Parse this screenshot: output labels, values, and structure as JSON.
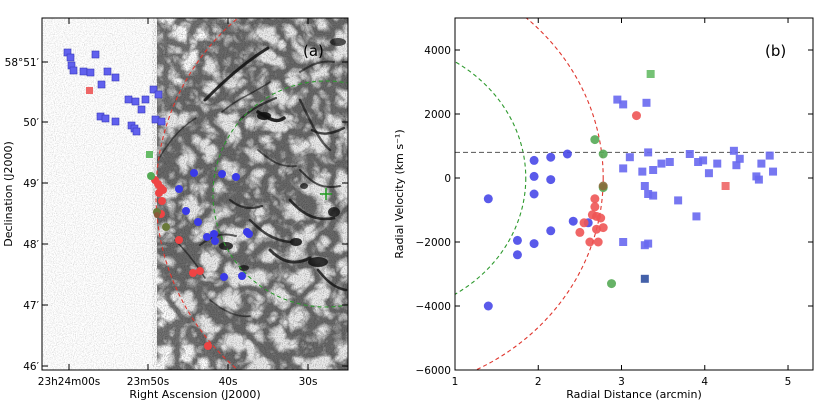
{
  "chart_data": [
    {
      "type": "image",
      "panel_label": "(a)",
      "xlabel": "Right Ascension (J2000)",
      "ylabel": "Declination (J2000)",
      "x_tick_labels": [
        "23h24m00s",
        "23m50s",
        "40s",
        "30s"
      ],
      "y_tick_labels": [
        "58°51′",
        "50′",
        "49′",
        "48′",
        "47′",
        "46′"
      ],
      "background": "grayscale narrowband image of supernova remnant (inverted)",
      "circles": [
        {
          "name": "outer-radius",
          "color": "#e0372f",
          "style": "dashed"
        },
        {
          "name": "inner-radius",
          "color": "#2e9a2e",
          "style": "dashed"
        }
      ],
      "center_marker": {
        "symbol": "+",
        "color": "#1e9a1e"
      }
    },
    {
      "type": "scatter",
      "panel_label": "(b)",
      "xlabel": "Radial Distance (arcmin)",
      "ylabel": "Radial Velocity (km s⁻¹)",
      "xlim": [
        1,
        5.3
      ],
      "ylim": [
        -6000,
        5000
      ],
      "xticks": [
        1,
        2,
        3,
        4,
        5
      ],
      "yticks": [
        -6000,
        -4000,
        -2000,
        0,
        2000,
        4000
      ],
      "x_tick_labels": [
        "1",
        "2",
        "3",
        "4",
        "5"
      ],
      "y_tick_labels": [
        "−6000",
        "−4000",
        "−2000",
        "0",
        "2000",
        "4000"
      ],
      "reference_line": {
        "y": 800,
        "color": "#555555",
        "style": "dashed"
      },
      "circles": [
        {
          "name": "inner-circle",
          "radius_x": 1.85,
          "color": "#2e9a2e",
          "style": "dashed"
        },
        {
          "name": "outer-circle",
          "radius_x": 2.78,
          "color": "#e0372f",
          "style": "dashed"
        }
      ],
      "series": [
        {
          "name": "blue-circles",
          "marker": "circle",
          "color": "#4848e8",
          "points": [
            [
              1.4,
              -650
            ],
            [
              1.4,
              -4000
            ],
            [
              1.75,
              -1950
            ],
            [
              1.75,
              -2400
            ],
            [
              1.95,
              550
            ],
            [
              1.95,
              50
            ],
            [
              1.95,
              -500
            ],
            [
              1.95,
              -2050
            ],
            [
              2.15,
              650
            ],
            [
              2.15,
              -50
            ],
            [
              2.15,
              -1650
            ],
            [
              2.35,
              750
            ],
            [
              2.42,
              -1350
            ],
            [
              2.6,
              -1400
            ]
          ]
        },
        {
          "name": "blue-squares",
          "marker": "square",
          "color": "#6868f0",
          "points": [
            [
              2.95,
              2450
            ],
            [
              3.02,
              2300
            ],
            [
              3.3,
              2350
            ],
            [
              3.02,
              300
            ],
            [
              3.1,
              650
            ],
            [
              3.25,
              200
            ],
            [
              3.28,
              -250
            ],
            [
              3.32,
              -500
            ],
            [
              3.32,
              800
            ],
            [
              3.38,
              -550
            ],
            [
              3.38,
              250
            ],
            [
              3.48,
              450
            ],
            [
              3.58,
              500
            ],
            [
              3.68,
              -700
            ],
            [
              3.82,
              750
            ],
            [
              3.9,
              -1200
            ],
            [
              3.92,
              500
            ],
            [
              3.98,
              550
            ],
            [
              4.05,
              150
            ],
            [
              4.15,
              450
            ],
            [
              4.35,
              850
            ],
            [
              4.38,
              400
            ],
            [
              4.42,
              600
            ],
            [
              4.62,
              50
            ],
            [
              4.65,
              -50
            ],
            [
              4.68,
              450
            ],
            [
              4.78,
              700
            ],
            [
              4.82,
              200
            ],
            [
              3.02,
              -2000
            ],
            [
              3.28,
              -2100
            ],
            [
              3.32,
              -2050
            ]
          ]
        },
        {
          "name": "navy-squares",
          "marker": "square",
          "color": "#3050a0",
          "points": [
            [
              3.28,
              -3150
            ]
          ]
        },
        {
          "name": "red-circles",
          "marker": "circle",
          "color": "#ee5555",
          "points": [
            [
              2.5,
              -1700
            ],
            [
              2.55,
              -1400
            ],
            [
              2.62,
              -2000
            ],
            [
              2.65,
              -1150
            ],
            [
              2.68,
              -650
            ],
            [
              2.68,
              -900
            ],
            [
              2.7,
              -1200
            ],
            [
              2.7,
              -1600
            ],
            [
              2.72,
              -2000
            ],
            [
              2.75,
              -1250
            ],
            [
              2.78,
              -1550
            ],
            [
              3.18,
              1950
            ]
          ]
        },
        {
          "name": "green-circles",
          "marker": "circle",
          "color": "#55aa55",
          "points": [
            [
              2.68,
              1200
            ],
            [
              2.78,
              750
            ],
            [
              2.78,
              -300
            ],
            [
              2.88,
              -3300
            ]
          ]
        },
        {
          "name": "olive-circles",
          "marker": "circle",
          "color": "#8a6a3a",
          "points": [
            [
              2.78,
              -250
            ]
          ]
        },
        {
          "name": "green-squares",
          "marker": "square",
          "color": "#66bb66",
          "points": [
            [
              3.35,
              3250
            ]
          ]
        },
        {
          "name": "red-squares",
          "marker": "square",
          "color": "#ee6666",
          "points": [
            [
              4.25,
              -250
            ]
          ]
        }
      ]
    }
  ]
}
